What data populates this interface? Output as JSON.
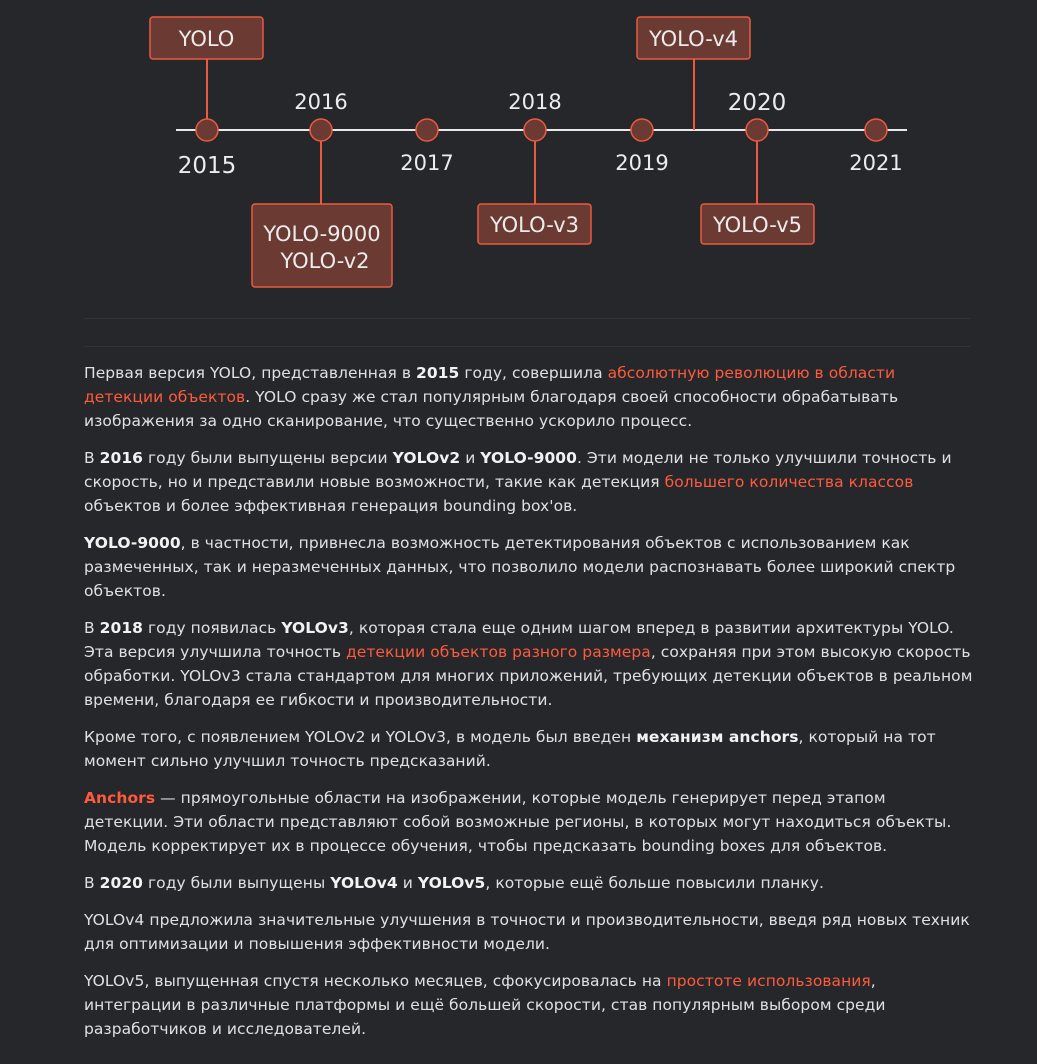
{
  "timeline": {
    "years": [
      "2015",
      "2016",
      "2017",
      "2018",
      "2019",
      "2020",
      "2021"
    ],
    "events": [
      {
        "year": "2015",
        "label": [
          "YOLO"
        ]
      },
      {
        "year": "2016",
        "label": [
          "YOLO-9000",
          "YOLO-v2"
        ]
      },
      {
        "year": "2018",
        "label": [
          "YOLO-v3"
        ]
      },
      {
        "year": "2020",
        "label": [
          "YOLO-v4"
        ]
      },
      {
        "year": "2020",
        "label": [
          "YOLO-v5"
        ]
      }
    ],
    "colors": {
      "line": "#e8e8e8",
      "dot": "#6b3a32",
      "box": "#6b3a32",
      "accent": "#ea5a3f"
    }
  },
  "article": {
    "p1": {
      "t1": "Первая версия YOLO, представленная в ",
      "b1": "2015",
      "t2": " году, совершила ",
      "link1": "абсолютную революцию в области детекции объектов",
      "t3": ". YOLO сразу же стал популярным благодаря своей способности обрабатывать изображения за одно сканирование, что существенно ускорило процесс."
    },
    "p2": {
      "t1": "В ",
      "b1": "2016",
      "t2": " году были выпущены версии ",
      "b2": "YOLOv2",
      "t3": " и ",
      "b3": "YOLO-9000",
      "t4": ". Эти модели не только улучшили точность и скорость, но и представили новые возможности, такие как детекция ",
      "link1": "большего количества классов",
      "t5": " объектов и более эффективная генерация bounding box'ов."
    },
    "p3": {
      "b1": "YOLO-9000",
      "t1": ", в частности, привнесла возможность детектирования объектов с использованием как размеченных, так и неразмеченных данных, что позволило модели распознавать более широкий спектр объектов."
    },
    "p4": {
      "t1": "В ",
      "b1": "2018",
      "t2": " году появилась ",
      "b2": "YOLOv3",
      "t3": ", которая стала еще одним шагом вперед в развитии архитектуры YOLO. Эта версия улучшила точность ",
      "link1": "детекции объектов разного размера",
      "t4": ", сохраняя при этом высокую скорость обработки. YOLOv3 стала стандартом для многих приложений, требующих детекции объектов в реальном времени, благодаря ее гибкости и производительности."
    },
    "p5": {
      "t1": "Кроме того, с появлением YOLOv2 и YOLOv3, в модель был введен ",
      "b1": "механизм anchors",
      "t2": ", который на тот момент сильно улучшил точность предсказаний."
    },
    "p6": {
      "b1": "Anchors",
      "t1": " — прямоугольные области на изображении, которые модель генерирует перед этапом детекции. Эти области представляют собой возможные регионы, в которых могут находиться объекты. Модель корректирует их в процессе обучения, чтобы предсказать bounding boxes для объектов."
    },
    "p7": {
      "t1": "В ",
      "b1": "2020",
      "t2": " году были выпущены ",
      "b2": "YOLOv4",
      "t3": " и ",
      "b3": "YOLOv5",
      "t4": ", которые ещё больше повысили планку."
    },
    "p8": {
      "t1": "YOLOv4 предложила значительные улучшения в точности и производительности, введя ряд новых техник для оптимизации и повышения эффективности модели."
    },
    "p9": {
      "t1": "YOLOv5, выпущенная спустя несколько месяцев, сфокусировалась на ",
      "link1": "простоте использования",
      "t2": ", интеграции в различные платформы и ещё большей скорости, став популярным выбором среди разработчиков и исследователей."
    }
  }
}
